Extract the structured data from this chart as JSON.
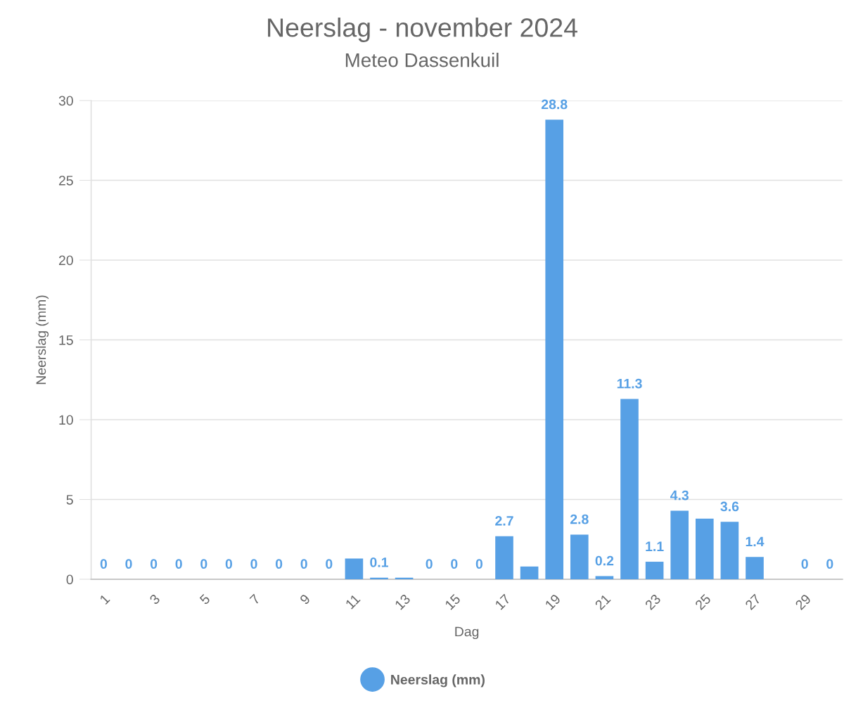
{
  "chart_data": {
    "type": "bar",
    "title": "Neerslag - november 2024",
    "subtitle": "Meteo Dassenkuil",
    "xlabel": "Dag",
    "ylabel": "Neerslag (mm)",
    "categories": [
      "1",
      null,
      "3",
      null,
      "5",
      null,
      "7",
      null,
      "9",
      null,
      "11",
      null,
      "13",
      null,
      "15",
      null,
      "17",
      null,
      "19",
      null,
      "21",
      null,
      "23",
      null,
      "25",
      null,
      "27",
      null,
      "29",
      null
    ],
    "series": [
      {
        "name": "Neerslag (mm)",
        "color": "#57a0e5",
        "values": [
          0,
          0,
          0,
          0,
          0,
          0,
          0,
          0,
          0,
          0,
          1.3,
          0.1,
          0.1,
          0,
          0,
          0,
          2.7,
          0.8,
          28.8,
          2.8,
          0.2,
          11.3,
          1.1,
          4.3,
          3.8,
          3.6,
          1.4,
          null,
          0,
          0
        ],
        "value_labels": [
          "0",
          "0",
          "0",
          "0",
          "0",
          "0",
          "0",
          "0",
          "0",
          "0",
          null,
          "0.1",
          null,
          "0",
          "0",
          "0",
          "2.7",
          null,
          "28.8",
          "2.8",
          "0.2",
          "11.3",
          "1.1",
          "4.3",
          null,
          "3.6",
          "1.4",
          null,
          "0",
          "0"
        ]
      }
    ],
    "ylim": [
      0,
      30
    ],
    "yticks": [
      0,
      5,
      10,
      15,
      20,
      25,
      30
    ],
    "grid": "y",
    "legend": "bottom"
  }
}
